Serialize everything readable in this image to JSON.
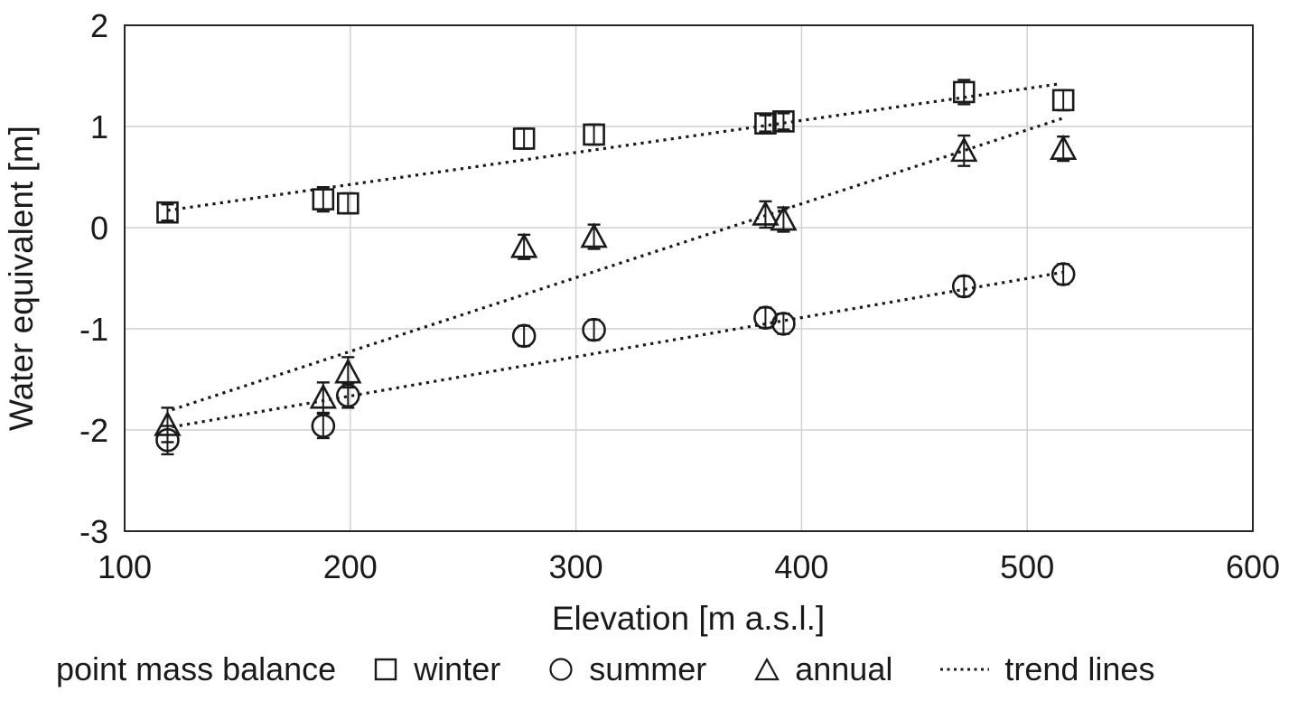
{
  "chart_data": {
    "type": "scatter",
    "title": "",
    "xlabel": "Elevation [m a.s.l.]",
    "ylabel": "Water equivalent [m]",
    "xlim": [
      100,
      600
    ],
    "ylim": [
      -3,
      2
    ],
    "x_ticks": [
      100,
      200,
      300,
      400,
      500,
      600
    ],
    "y_ticks": [
      2,
      1,
      0,
      -1,
      -2,
      -3
    ],
    "grid": true,
    "legend_position": "bottom",
    "series": [
      {
        "name": "winter",
        "marker": "square",
        "points": [
          {
            "x": 119,
            "y": 0.15,
            "err": 0.08
          },
          {
            "x": 188,
            "y": 0.28,
            "err": 0.12
          },
          {
            "x": 199,
            "y": 0.24,
            "err": 0.1
          },
          {
            "x": 277,
            "y": 0.88,
            "err": 0.1
          },
          {
            "x": 308,
            "y": 0.92,
            "err": 0.1
          },
          {
            "x": 384,
            "y": 1.03,
            "err": 0.08
          },
          {
            "x": 392,
            "y": 1.05,
            "err": 0.08
          },
          {
            "x": 472,
            "y": 1.34,
            "err": 0.12
          },
          {
            "x": 516,
            "y": 1.26,
            "err": 0.1
          }
        ]
      },
      {
        "name": "summer",
        "marker": "circle",
        "points": [
          {
            "x": 119,
            "y": -2.1,
            "err": 0.14
          },
          {
            "x": 188,
            "y": -1.96,
            "err": 0.12
          },
          {
            "x": 199,
            "y": -1.66,
            "err": 0.12
          },
          {
            "x": 277,
            "y": -1.07,
            "err": 0.1
          },
          {
            "x": 308,
            "y": -1.01,
            "err": 0.1
          },
          {
            "x": 384,
            "y": -0.89,
            "err": 0.1
          },
          {
            "x": 392,
            "y": -0.95,
            "err": 0.1
          },
          {
            "x": 472,
            "y": -0.58,
            "err": 0.1
          },
          {
            "x": 516,
            "y": -0.46,
            "err": 0.1
          }
        ]
      },
      {
        "name": "annual",
        "marker": "triangle",
        "points": [
          {
            "x": 119,
            "y": -1.95,
            "err": 0.17
          },
          {
            "x": 188,
            "y": -1.68,
            "err": 0.15
          },
          {
            "x": 199,
            "y": -1.43,
            "err": 0.15
          },
          {
            "x": 277,
            "y": -0.19,
            "err": 0.12
          },
          {
            "x": 308,
            "y": -0.09,
            "err": 0.12
          },
          {
            "x": 384,
            "y": 0.13,
            "err": 0.13
          },
          {
            "x": 392,
            "y": 0.08,
            "err": 0.12
          },
          {
            "x": 472,
            "y": 0.76,
            "err": 0.15
          },
          {
            "x": 516,
            "y": 0.78,
            "err": 0.12
          }
        ]
      }
    ],
    "trend_lines": [
      {
        "name": "winter-trend",
        "x1": 119,
        "y1": 0.17,
        "x2": 514,
        "y2": 1.42
      },
      {
        "name": "annual-trend",
        "x1": 121,
        "y1": -1.8,
        "x2": 517,
        "y2": 1.09
      },
      {
        "name": "summer-trend",
        "x1": 121,
        "y1": -1.97,
        "x2": 516,
        "y2": -0.44
      }
    ]
  },
  "legend": {
    "prefix": "point mass balance",
    "items": [
      {
        "label": "winter",
        "marker": "square"
      },
      {
        "label": "summer",
        "marker": "circle"
      },
      {
        "label": "annual",
        "marker": "triangle"
      },
      {
        "label": "trend lines",
        "marker": "dotted-line"
      }
    ]
  },
  "colors": {
    "marker_stroke": "#1a1a1a",
    "trend_line": "#1a1a1a",
    "gridline": "#d2d2d2",
    "plot_border": "#262626",
    "text": "#1a1a1a",
    "background": "#ffffff"
  }
}
